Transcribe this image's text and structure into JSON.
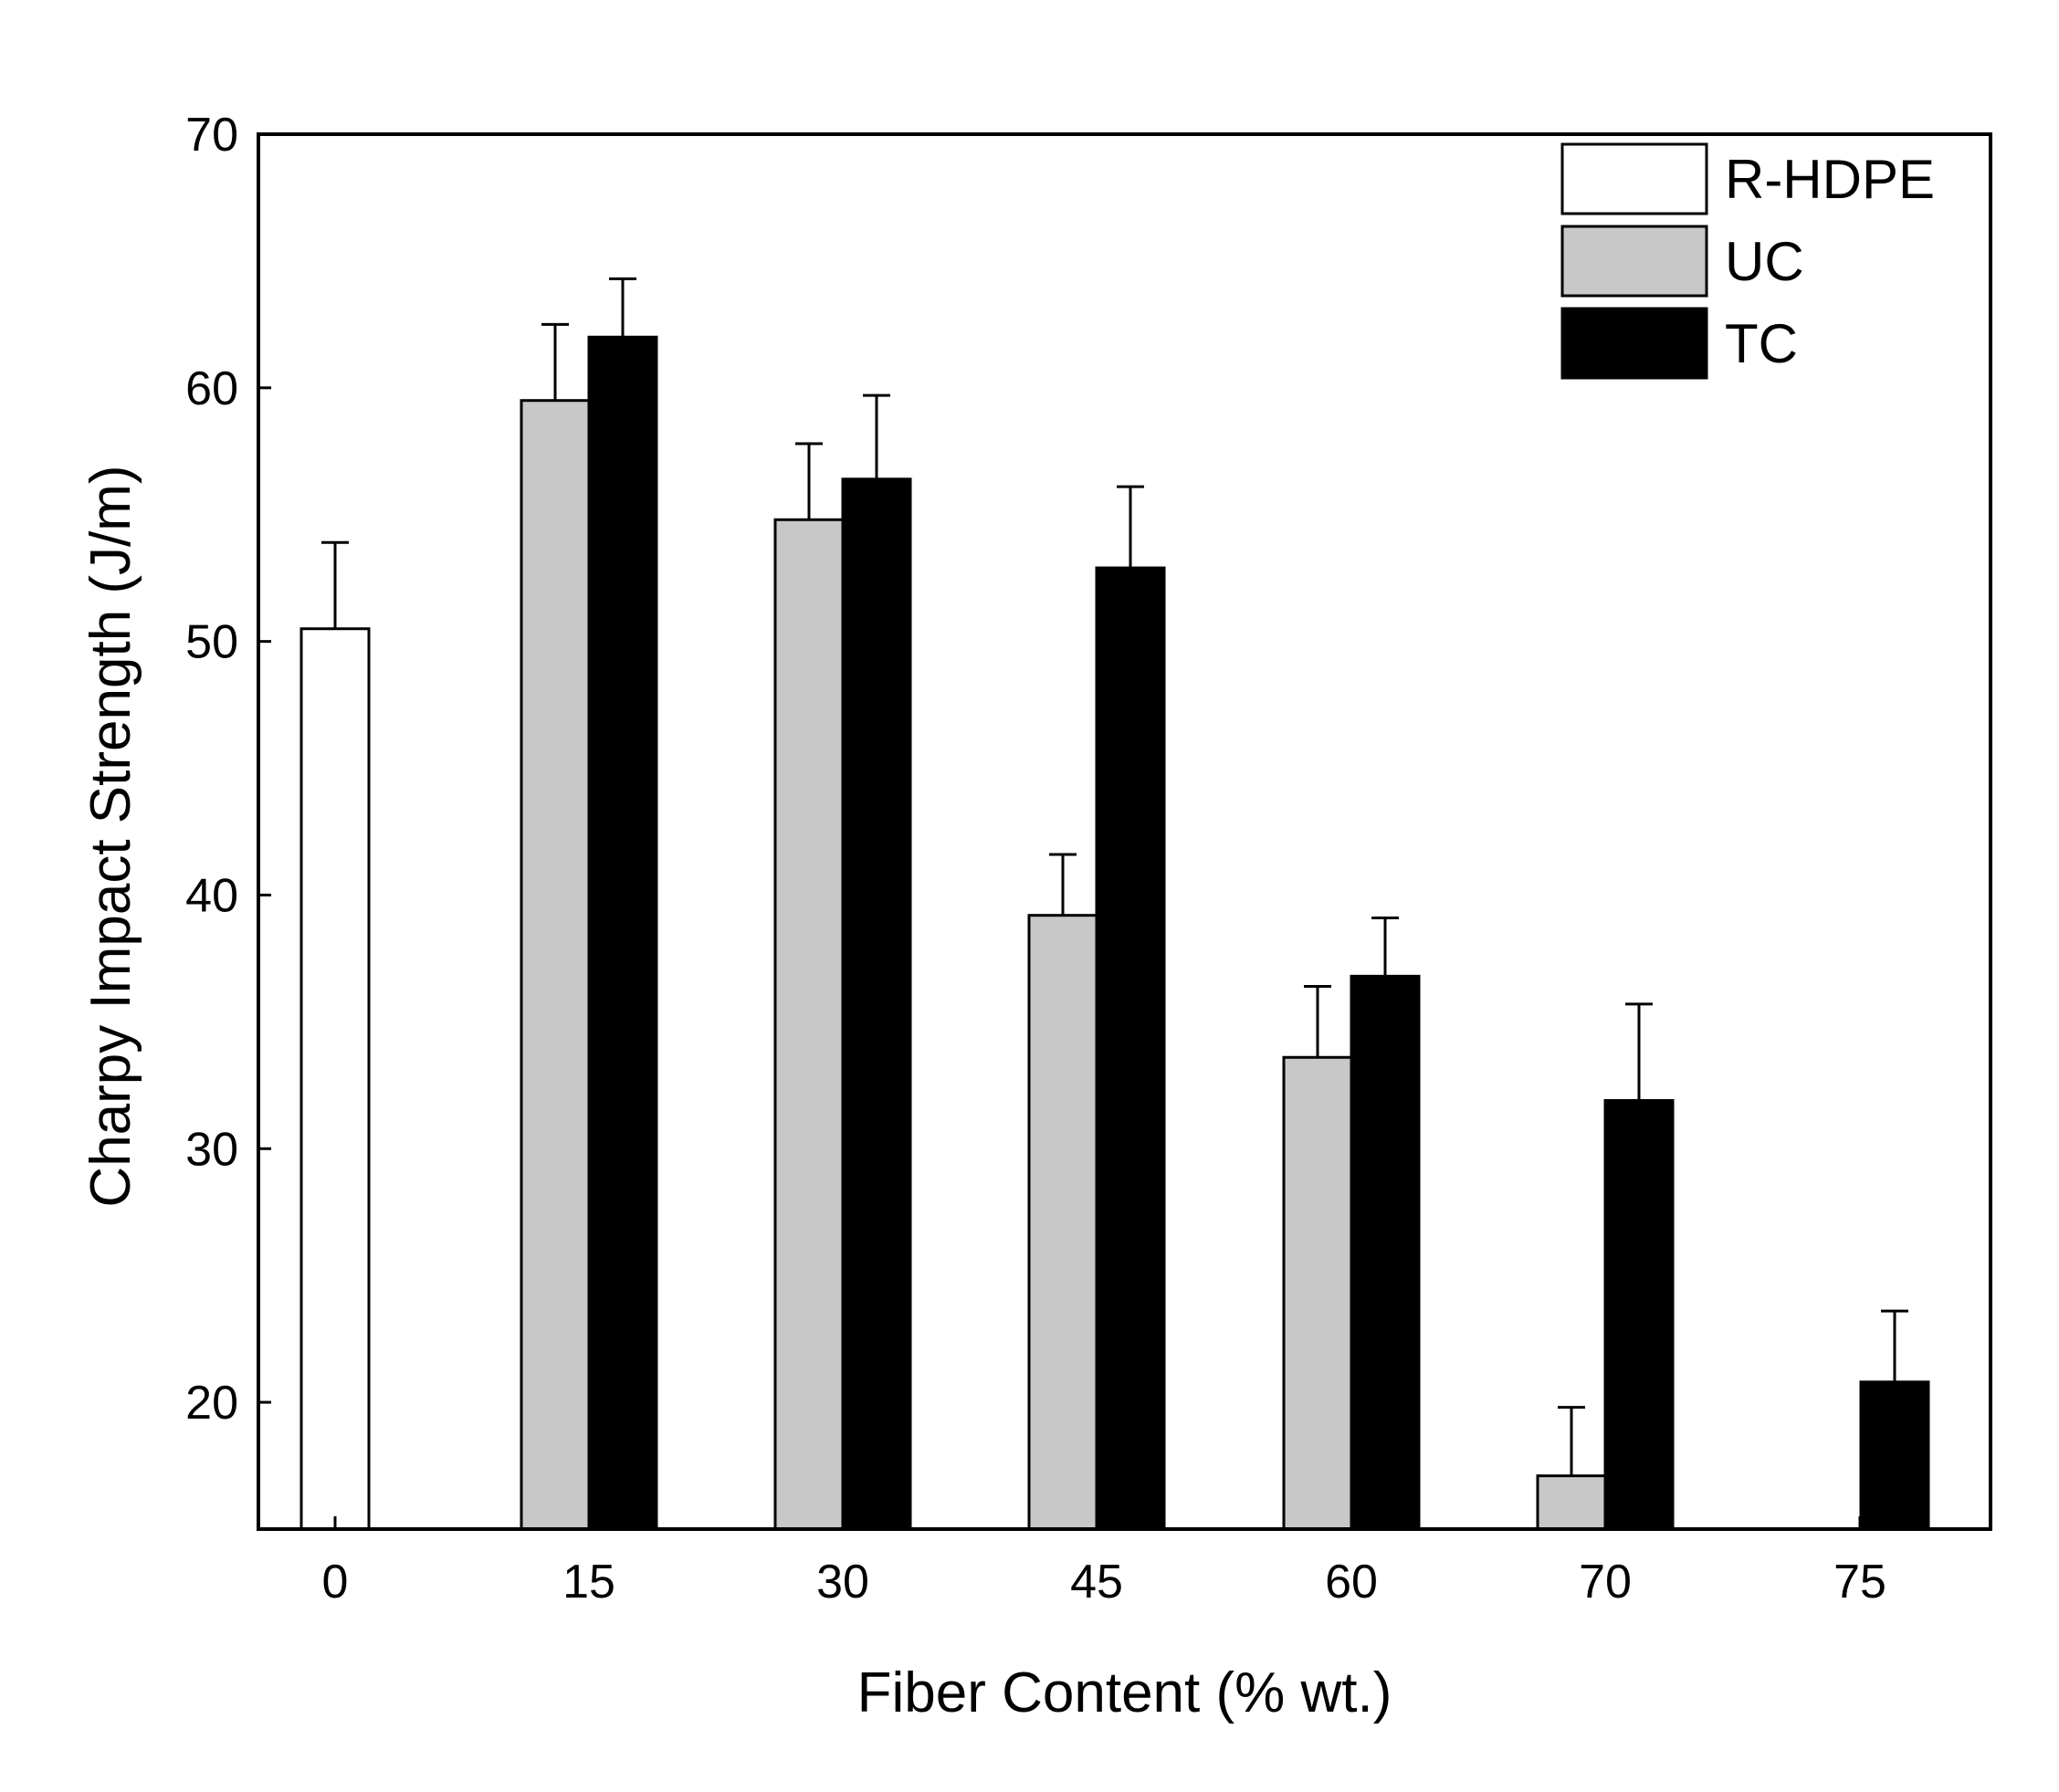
{
  "chart_data": {
    "type": "bar",
    "xlabel": "Fiber Content (% wt.)",
    "ylabel": "Charpy Impact Strength (J/m)",
    "categories": [
      "0",
      "15",
      "30",
      "45",
      "60",
      "70",
      "75"
    ],
    "ylim": [
      15,
      70
    ],
    "yticks": [
      20,
      30,
      40,
      50,
      60,
      70
    ],
    "legend_position": "top-right",
    "grid": false,
    "series": [
      {
        "name": "R-HDPE",
        "color": "#ffffff",
        "values": [
          50.5,
          null,
          null,
          null,
          null,
          null,
          null
        ],
        "errors": [
          3.4,
          null,
          null,
          null,
          null,
          null,
          null
        ]
      },
      {
        "name": "UC",
        "color": "#c8c8c8",
        "values": [
          null,
          59.5,
          54.8,
          39.2,
          33.6,
          17.1,
          null
        ],
        "errors": [
          null,
          3.0,
          3.0,
          2.4,
          2.8,
          2.7,
          null
        ]
      },
      {
        "name": "TC",
        "color": "#000000",
        "values": [
          null,
          62.0,
          56.4,
          52.9,
          36.8,
          31.9,
          20.8
        ],
        "errors": [
          null,
          2.3,
          3.3,
          3.2,
          2.3,
          3.8,
          2.8
        ]
      }
    ]
  }
}
